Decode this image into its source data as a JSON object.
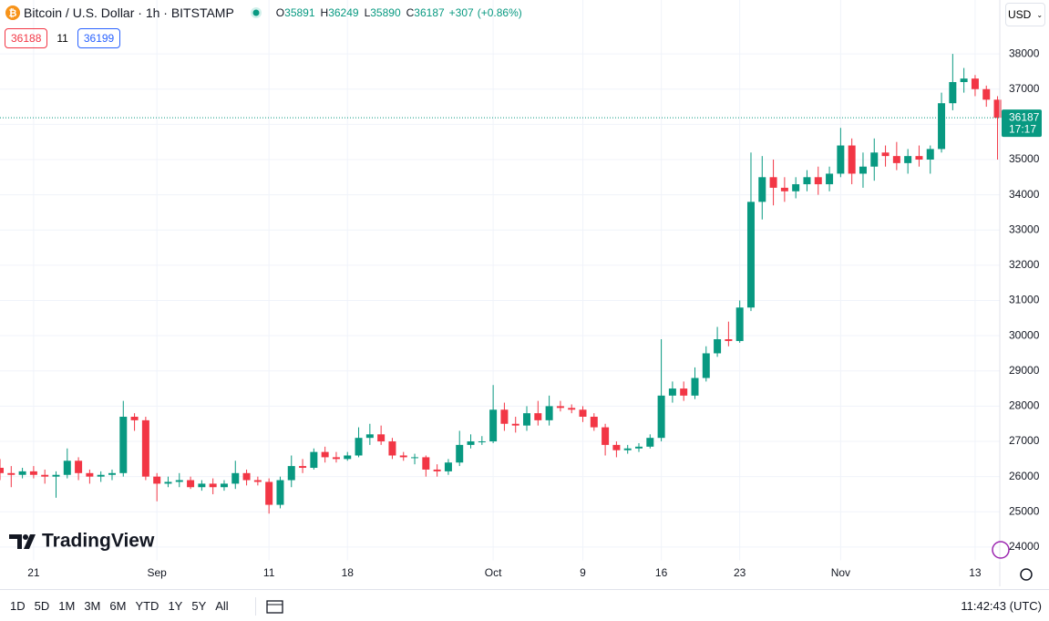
{
  "legend": {
    "title": "Bitcoin / U.S. Dollar · 1h · BITSTAMP",
    "o_label": "O",
    "open": 35891,
    "h_label": "H",
    "high": 36249,
    "l_label": "L",
    "low": 35890,
    "c_label": "C",
    "close": 36187,
    "change": "+307",
    "change_pct": "(+0.86%)",
    "sell": 36188,
    "spread": 11,
    "buy": 36199
  },
  "currency": "USD",
  "logo": "TradingView",
  "countdown": "17:17",
  "ranges": [
    "1D",
    "5D",
    "1M",
    "3M",
    "6M",
    "YTD",
    "1Y",
    "5Y",
    "All"
  ],
  "clock": "11:42:43 (UTC)",
  "chart_data": {
    "type": "candlestick",
    "up_color": "#089981",
    "down_color": "#f23645",
    "grid": true,
    "last_price": 36187,
    "xlim": [
      230,
      319.2
    ],
    "ylim": [
      23610,
      39530
    ],
    "xticks": [
      {
        "value": 233,
        "label": "21"
      },
      {
        "value": 244,
        "label": "Sep"
      },
      {
        "value": 254,
        "label": "11"
      },
      {
        "value": 261,
        "label": "18"
      },
      {
        "value": 274,
        "label": "Oct"
      },
      {
        "value": 282,
        "label": "9"
      },
      {
        "value": 289,
        "label": "16"
      },
      {
        "value": 296,
        "label": "23"
      },
      {
        "value": 305,
        "label": "Nov"
      },
      {
        "value": 317,
        "label": "13"
      }
    ],
    "yticks": [
      24000,
      25000,
      26000,
      27000,
      28000,
      29000,
      30000,
      31000,
      32000,
      33000,
      34000,
      35000,
      36000,
      37000,
      38000
    ],
    "x": [
      230,
      231,
      232,
      233,
      234,
      235,
      236,
      237,
      238,
      239,
      240,
      241,
      242,
      243,
      244,
      245,
      246,
      247,
      248,
      249,
      250,
      251,
      252,
      253,
      254,
      255,
      256,
      257,
      258,
      259,
      260,
      261,
      262,
      263,
      264,
      265,
      266,
      267,
      268,
      269,
      270,
      271,
      272,
      273,
      274,
      275,
      276,
      277,
      278,
      279,
      280,
      281,
      282,
      283,
      284,
      285,
      286,
      287,
      288,
      289,
      290,
      291,
      292,
      293,
      294,
      295,
      296,
      297,
      298,
      299,
      300,
      301,
      302,
      303,
      304,
      305,
      306,
      307,
      308,
      309,
      310,
      311,
      312,
      313,
      314,
      315,
      316,
      317,
      318,
      319
    ],
    "open": [
      26250,
      26100,
      26050,
      26150,
      26050,
      26000,
      26050,
      26450,
      26100,
      26000,
      26050,
      26100,
      27700,
      27600,
      26000,
      25800,
      25850,
      25900,
      25700,
      25800,
      25700,
      25800,
      26100,
      25900,
      25850,
      25200,
      25900,
      26300,
      26250,
      26700,
      26550,
      26500,
      26600,
      27100,
      27200,
      27000,
      26600,
      26550,
      26550,
      26200,
      26150,
      26400,
      26900,
      27000,
      27000,
      27900,
      27500,
      27450,
      27800,
      27600,
      28000,
      27950,
      27900,
      27700,
      27400,
      26900,
      26750,
      26800,
      26850,
      27100,
      28300,
      28500,
      28300,
      28800,
      29500,
      29900,
      29850,
      30800,
      33800,
      34500,
      34200,
      34100,
      34300,
      34500,
      34300,
      34600,
      35400,
      34600,
      34800,
      35200,
      35100,
      34900,
      35100,
      35000,
      35300,
      36600,
      37200,
      37300,
      37000,
      36700
    ],
    "high": [
      26500,
      26300,
      26250,
      26300,
      26200,
      26150,
      26800,
      26550,
      26200,
      26150,
      26200,
      28150,
      27800,
      27700,
      26100,
      26000,
      26100,
      26000,
      25900,
      25950,
      25900,
      26450,
      26200,
      26000,
      25950,
      26000,
      26600,
      26500,
      26800,
      26850,
      26700,
      26700,
      27400,
      27500,
      27450,
      27100,
      26700,
      26650,
      26600,
      26350,
      26500,
      27300,
      27200,
      27150,
      28600,
      28100,
      27700,
      28000,
      28150,
      28300,
      28150,
      28050,
      28000,
      27800,
      27500,
      27000,
      26900,
      26950,
      27200,
      29900,
      28700,
      28700,
      29100,
      29700,
      30250,
      30400,
      31000,
      35200,
      35100,
      35000,
      34500,
      34500,
      34700,
      34800,
      34800,
      35900,
      35600,
      35200,
      35600,
      35400,
      35500,
      35300,
      35400,
      35400,
      36900,
      38000,
      37600,
      37400,
      37100,
      36800
    ],
    "low": [
      25900,
      25700,
      25950,
      25950,
      25800,
      25400,
      25950,
      25900,
      25800,
      25850,
      25900,
      26000,
      27300,
      25900,
      25300,
      25700,
      25700,
      25650,
      25600,
      25500,
      25600,
      25650,
      25750,
      25750,
      24950,
      25100,
      25700,
      26100,
      26200,
      26400,
      26400,
      26450,
      26550,
      26900,
      26900,
      26500,
      26450,
      26350,
      26000,
      26000,
      26050,
      26300,
      26800,
      26900,
      26950,
      27300,
      27250,
      27300,
      27450,
      27450,
      27850,
      27800,
      27550,
      27300,
      26600,
      26550,
      26650,
      26700,
      26800,
      27000,
      28100,
      28150,
      28200,
      28700,
      29400,
      29700,
      29800,
      30700,
      33300,
      33700,
      33800,
      33900,
      34100,
      34000,
      34100,
      34500,
      34300,
      34200,
      34400,
      34800,
      34700,
      34600,
      34800,
      34600,
      35200,
      36400,
      36900,
      36800,
      36500,
      35000
    ],
    "close": [
      26100,
      26050,
      26150,
      26050,
      26000,
      26050,
      26450,
      26100,
      26000,
      26050,
      26100,
      27700,
      27600,
      26000,
      25800,
      25850,
      25900,
      25700,
      25800,
      25700,
      25800,
      26100,
      25900,
      25850,
      25200,
      25900,
      26300,
      26250,
      26700,
      26550,
      26500,
      26600,
      27100,
      27200,
      27000,
      26600,
      26550,
      26550,
      26200,
      26150,
      26400,
      26900,
      27000,
      27000,
      27900,
      27500,
      27450,
      27800,
      27600,
      28000,
      27950,
      27900,
      27700,
      27400,
      26900,
      26750,
      26800,
      26850,
      27100,
      28300,
      28500,
      28300,
      28800,
      29500,
      29900,
      29850,
      30800,
      33800,
      34500,
      34200,
      34100,
      34300,
      34500,
      34300,
      34600,
      35400,
      34600,
      34800,
      35200,
      35100,
      34900,
      35100,
      35000,
      35300,
      36600,
      37200,
      37300,
      37000,
      36700,
      36187
    ]
  }
}
